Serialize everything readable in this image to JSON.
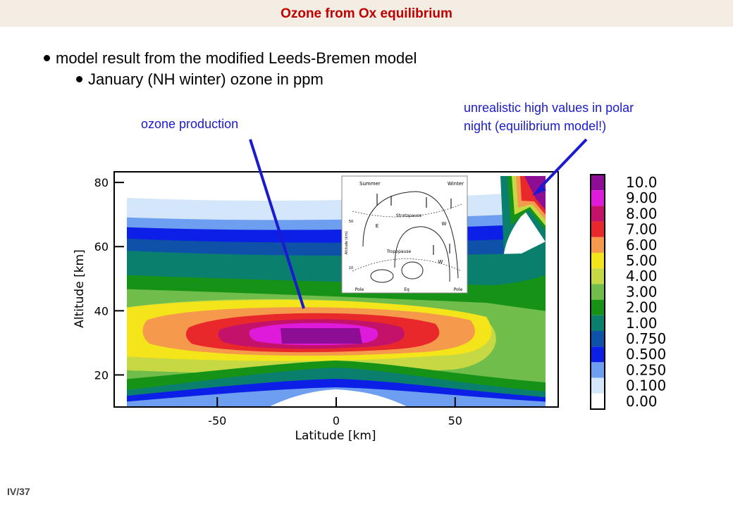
{
  "slide": {
    "title": "Ozone from Ox equilibrium",
    "bullet1": "model result from the modified Leeds-Bremen model",
    "bullet2": "January (NH winter) ozone in ppm",
    "annotation_production": "ozone production",
    "annotation_polar_line1": "unrealistic high values in polar",
    "annotation_polar_line2": "night (equilibrium model!)",
    "page_number": "IV/37"
  },
  "chart_data": {
    "type": "contour",
    "title": "",
    "xlabel": "Latitude [km]",
    "ylabel": "Altitude [km]",
    "xlim": [
      -88,
      88
    ],
    "ylim": [
      10,
      82
    ],
    "x_ticks": [
      {
        "value": -50,
        "label": "-50"
      },
      {
        "value": 0,
        "label": "0"
      },
      {
        "value": 50,
        "label": "50"
      }
    ],
    "y_ticks": [
      {
        "value": 20,
        "label": "20"
      },
      {
        "value": 40,
        "label": "40"
      },
      {
        "value": 60,
        "label": "60"
      },
      {
        "value": 80,
        "label": "80"
      }
    ],
    "units": "ppm",
    "levels": [
      {
        "label": "10.0",
        "color": "#8e0d95"
      },
      {
        "label": "9.00",
        "color": "#e01adb"
      },
      {
        "label": "8.00",
        "color": "#c4126a"
      },
      {
        "label": "7.00",
        "color": "#e8282a"
      },
      {
        "label": "6.00",
        "color": "#f59a4c"
      },
      {
        "label": "5.00",
        "color": "#f4e51a"
      },
      {
        "label": "4.00",
        "color": "#c6d944"
      },
      {
        "label": "3.00",
        "color": "#71bd4c"
      },
      {
        "label": "2.00",
        "color": "#169316"
      },
      {
        "label": "1.00",
        "color": "#0b7f6e"
      },
      {
        "label": "0.750",
        "color": "#0d52a8"
      },
      {
        "label": "0.500",
        "color": "#0b1fe6"
      },
      {
        "label": "0.250",
        "color": "#6e9ef0"
      },
      {
        "label": "0.100",
        "color": "#d4e6fa"
      },
      {
        "label": "0.00",
        "color": "#ffffff"
      }
    ],
    "annotations": [
      {
        "text": "ozone production",
        "target": [
          -30,
          41
        ]
      },
      {
        "text": "unrealistic high values in polar night (equilibrium model!)",
        "target": [
          80,
          76
        ]
      }
    ],
    "inset": {
      "description_labels": [
        "Summer",
        "Winter",
        "Stratopause",
        "Tropopause",
        "E",
        "W",
        "W",
        "Pole",
        "Eq",
        "Pole",
        "Altitude (km)",
        "50",
        "10"
      ]
    }
  }
}
